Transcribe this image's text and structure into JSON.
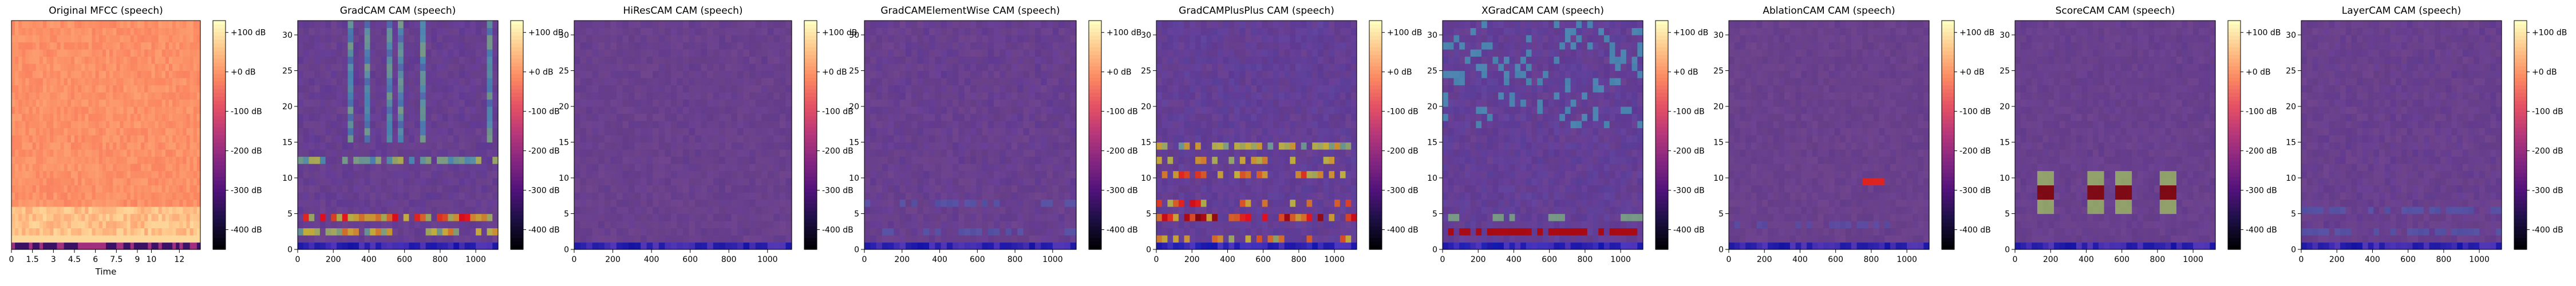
{
  "figure": {
    "panel_count": 9
  },
  "chart_data": [
    {
      "type": "heatmap",
      "title": "Original MFCC (speech)",
      "xlabel": "Time",
      "ylabel": "",
      "x_ticks": [
        "0",
        "1.5",
        "3",
        "4.5",
        "6",
        "7.5",
        "9",
        "10",
        "12"
      ],
      "y_ticks": [],
      "xlim": [
        0,
        13.5
      ],
      "ylim": [
        0,
        32
      ],
      "map": "original",
      "colorbar": {
        "ticks": [
          "+100 dB",
          "+0 dB",
          "-100 dB",
          "-200 dB",
          "-300 dB",
          "-400 dB"
        ],
        "range": [
          -450,
          130
        ],
        "colormap": "magma"
      }
    },
    {
      "type": "heatmap",
      "title": "GradCAM CAM (speech)",
      "xlabel": "",
      "ylabel": "",
      "x_ticks": [
        "0",
        "200",
        "400",
        "600",
        "800",
        "1000"
      ],
      "y_ticks": [
        "0",
        "5",
        "10",
        "15",
        "20",
        "25",
        "30"
      ],
      "xlim": [
        0,
        1125
      ],
      "ylim": [
        0,
        32
      ],
      "map": "gradcam",
      "colorbar": {
        "ticks": [
          "+100 dB",
          "+0 dB",
          "-100 dB",
          "-200 dB",
          "-300 dB",
          "-400 dB"
        ],
        "range": [
          -450,
          130
        ],
        "colormap": "magma"
      }
    },
    {
      "type": "heatmap",
      "title": "HiResCAM CAM (speech)",
      "xlabel": "",
      "ylabel": "",
      "x_ticks": [
        "0",
        "200",
        "400",
        "600",
        "800",
        "1000"
      ],
      "y_ticks": [
        "0",
        "5",
        "10",
        "15",
        "20",
        "25",
        "30"
      ],
      "xlim": [
        0,
        1125
      ],
      "ylim": [
        0,
        32
      ],
      "map": "hirescam",
      "colorbar": {
        "ticks": [
          "+100 dB",
          "+0 dB",
          "-100 dB",
          "-200 dB",
          "-300 dB",
          "-400 dB"
        ],
        "range": [
          -450,
          130
        ],
        "colormap": "magma"
      }
    },
    {
      "type": "heatmap",
      "title": "GradCAMElementWise CAM (speech)",
      "xlabel": "",
      "ylabel": "",
      "x_ticks": [
        "0",
        "200",
        "400",
        "600",
        "800",
        "1000"
      ],
      "y_ticks": [
        "0",
        "5",
        "10",
        "15",
        "20",
        "25",
        "30"
      ],
      "xlim": [
        0,
        1125
      ],
      "ylim": [
        0,
        32
      ],
      "map": "elementwise",
      "colorbar": {
        "ticks": [
          "+100 dB",
          "+0 dB",
          "-100 dB",
          "-200 dB",
          "-300 dB",
          "-400 dB"
        ],
        "range": [
          -450,
          130
        ],
        "colormap": "magma"
      }
    },
    {
      "type": "heatmap",
      "title": "GradCAMPlusPlus CAM (speech)",
      "xlabel": "",
      "ylabel": "",
      "x_ticks": [
        "0",
        "200",
        "400",
        "600",
        "800",
        "1000"
      ],
      "y_ticks": [
        "0",
        "5",
        "10",
        "15",
        "20",
        "25",
        "30"
      ],
      "xlim": [
        0,
        1125
      ],
      "ylim": [
        0,
        32
      ],
      "map": "gradcampp",
      "colorbar": {
        "ticks": [
          "+100 dB",
          "+0 dB",
          "-100 dB",
          "-200 dB",
          "-300 dB",
          "-400 dB"
        ],
        "range": [
          -450,
          130
        ],
        "colormap": "magma"
      }
    },
    {
      "type": "heatmap",
      "title": "XGradCAM CAM (speech)",
      "xlabel": "",
      "ylabel": "",
      "x_ticks": [
        "0",
        "200",
        "400",
        "600",
        "800",
        "1000"
      ],
      "y_ticks": [
        "0",
        "5",
        "10",
        "15",
        "20",
        "25",
        "30"
      ],
      "xlim": [
        0,
        1125
      ],
      "ylim": [
        0,
        32
      ],
      "map": "xgradcam",
      "colorbar": {
        "ticks": [
          "+100 dB",
          "+0 dB",
          "-100 dB",
          "-200 dB",
          "-300 dB",
          "-400 dB"
        ],
        "range": [
          -450,
          130
        ],
        "colormap": "magma"
      }
    },
    {
      "type": "heatmap",
      "title": "AblationCAM CAM (speech)",
      "xlabel": "",
      "ylabel": "",
      "x_ticks": [
        "0",
        "200",
        "400",
        "600",
        "800",
        "1000"
      ],
      "y_ticks": [
        "0",
        "5",
        "10",
        "15",
        "20",
        "25",
        "30"
      ],
      "xlim": [
        0,
        1125
      ],
      "ylim": [
        0,
        32
      ],
      "map": "ablation",
      "colorbar": {
        "ticks": [
          "+100 dB",
          "+0 dB",
          "-100 dB",
          "-200 dB",
          "-300 dB",
          "-400 dB"
        ],
        "range": [
          -450,
          130
        ],
        "colormap": "magma"
      }
    },
    {
      "type": "heatmap",
      "title": "ScoreCAM CAM (speech)",
      "xlabel": "",
      "ylabel": "",
      "x_ticks": [
        "0",
        "200",
        "400",
        "600",
        "800",
        "1000"
      ],
      "y_ticks": [
        "0",
        "5",
        "10",
        "15",
        "20",
        "25",
        "30"
      ],
      "xlim": [
        0,
        1125
      ],
      "ylim": [
        0,
        32
      ],
      "map": "scorecam",
      "colorbar": {
        "ticks": [
          "+100 dB",
          "+0 dB",
          "-100 dB",
          "-200 dB",
          "-300 dB",
          "-400 dB"
        ],
        "range": [
          -450,
          130
        ],
        "colormap": "magma"
      }
    },
    {
      "type": "heatmap",
      "title": "LayerCAM CAM (speech)",
      "xlabel": "",
      "ylabel": "",
      "x_ticks": [
        "0",
        "200",
        "400",
        "600",
        "800",
        "1000"
      ],
      "y_ticks": [
        "0",
        "5",
        "10",
        "15",
        "20",
        "25",
        "30"
      ],
      "xlim": [
        0,
        1125
      ],
      "ylim": [
        0,
        32
      ],
      "map": "layercam",
      "colorbar": {
        "ticks": [
          "+100 dB",
          "+0 dB",
          "-100 dB",
          "-200 dB",
          "-300 dB",
          "-400 dB"
        ],
        "range": [
          -450,
          130
        ],
        "colormap": "magma"
      }
    }
  ]
}
